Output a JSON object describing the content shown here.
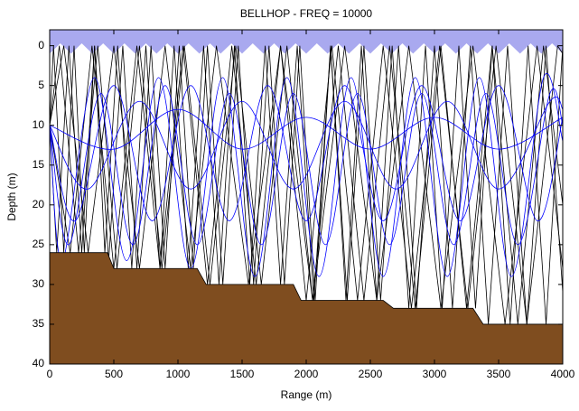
{
  "chart_data": {
    "type": "ray-trace",
    "title": "BELLHOP - FREQ = 10000",
    "xlabel": "Range (m)",
    "ylabel": "Depth (m)",
    "xlim": [
      0,
      4000
    ],
    "ylim": [
      -2,
      40
    ],
    "y_reversed": true,
    "xticks": [
      0,
      500,
      1000,
      1500,
      2000,
      2500,
      3000,
      3500,
      4000
    ],
    "yticks": [
      0,
      5,
      10,
      15,
      20,
      25,
      30,
      35,
      40
    ],
    "surface": {
      "color": "#a9a9ef",
      "x": [
        0,
        83,
        167,
        250,
        333,
        417,
        500,
        583,
        667,
        750,
        833,
        917,
        1000,
        1083,
        1167,
        1250,
        1333,
        1417,
        1500,
        1583,
        1667,
        1750,
        1833,
        1917,
        2000,
        2083,
        2167,
        2250,
        2333,
        2417,
        2500,
        2583,
        2667,
        2750,
        2833,
        2917,
        3000,
        3083,
        3167,
        3250,
        3333,
        3417,
        3500,
        3583,
        3667,
        3750,
        3833,
        3917,
        4000
      ],
      "y": [
        1,
        -0.3,
        1,
        -0.3,
        1,
        -0.3,
        1,
        -0.3,
        1,
        -0.3,
        1,
        -0.3,
        1,
        -0.3,
        1,
        -0.3,
        1,
        -0.3,
        1,
        -0.3,
        1,
        -0.3,
        1,
        -0.3,
        1,
        -0.3,
        1,
        -0.3,
        1,
        -0.3,
        1,
        -0.3,
        1,
        -0.3,
        1,
        -0.3,
        1,
        -0.3,
        1,
        -0.3,
        1,
        -0.3,
        1,
        -0.3,
        1,
        -0.3,
        1,
        -0.3,
        1
      ]
    },
    "bathymetry": {
      "color": "#7f4d1f",
      "x": [
        0,
        450,
        500,
        1150,
        1220,
        1900,
        1960,
        2600,
        2680,
        3300,
        3380,
        4000
      ],
      "y": [
        26,
        26,
        28,
        28,
        30,
        30,
        32,
        32,
        33,
        33,
        35,
        35
      ]
    },
    "rays": [
      {
        "color": "#000000",
        "curved": false,
        "x": [
          0,
          75,
          225,
          375,
          525,
          700,
          875,
          1050,
          1250,
          1450,
          1650,
          1850,
          2050,
          2250,
          2450,
          2650,
          2850,
          3050,
          3250,
          3450,
          3650,
          3850,
          4000
        ],
        "y": [
          10,
          0,
          26,
          0,
          28,
          0,
          28,
          0,
          30,
          0,
          30,
          0,
          32,
          0,
          32,
          0,
          33,
          0,
          33,
          0,
          35,
          0,
          20
        ]
      },
      {
        "color": "#000000",
        "curved": false,
        "x": [
          0,
          30,
          110,
          190,
          270,
          350,
          430,
          530,
          640,
          750,
          860,
          970,
          1080,
          1200,
          1320,
          1440,
          1560,
          1680,
          1800,
          1930,
          2060,
          2190,
          2320,
          2450,
          2580,
          2720,
          2860,
          3000,
          3140,
          3280,
          3420,
          3570,
          3720,
          3870,
          4000
        ],
        "y": [
          10,
          0,
          26,
          0,
          26,
          0,
          26,
          0,
          28,
          0,
          28,
          0,
          28,
          0,
          30,
          0,
          30,
          0,
          30,
          0,
          32,
          0,
          32,
          0,
          32,
          0,
          33,
          0,
          33,
          0,
          35,
          0,
          35,
          0,
          31
        ]
      },
      {
        "color": "#000000",
        "curved": false,
        "x": [
          0,
          110,
          300,
          500,
          700,
          900,
          1100,
          1300,
          1550,
          1800,
          2050,
          2300,
          2550,
          2800,
          3050,
          3300,
          3550,
          3800,
          4000
        ],
        "y": [
          10,
          0,
          26,
          0,
          28,
          0,
          28,
          0,
          30,
          0,
          32,
          0,
          32,
          0,
          33,
          0,
          35,
          0,
          28
        ]
      },
      {
        "color": "#000000",
        "curved": false,
        "x": [
          0,
          160,
          330,
          500,
          680,
          860,
          1040,
          1230,
          1420,
          1610,
          1800,
          2000,
          2200,
          2400,
          2600,
          2820,
          3040,
          3260,
          3480,
          3720,
          3960,
          4000
        ],
        "y": [
          10,
          26,
          0,
          28,
          0,
          28,
          0,
          30,
          0,
          30,
          0,
          32,
          0,
          32,
          0,
          33,
          0,
          33,
          0,
          35,
          0,
          1
        ]
      },
      {
        "color": "#000000",
        "curved": false,
        "x": [
          0,
          55,
          150,
          250,
          350,
          460,
          570,
          680,
          790,
          900,
          1010,
          1120,
          1230,
          1350,
          1470,
          1590,
          1710,
          1830,
          1950,
          2070,
          2190,
          2310,
          2430,
          2550,
          2670,
          2800,
          2930,
          3060,
          3190,
          3320,
          3450,
          3590,
          3730,
          3870,
          4000
        ],
        "y": [
          10,
          26,
          0,
          26,
          0,
          27,
          0,
          28,
          0,
          28,
          0,
          28,
          0,
          30,
          0,
          30,
          0,
          30,
          0,
          32,
          0,
          32,
          0,
          32,
          0,
          33,
          0,
          33,
          0,
          33,
          0,
          35,
          0,
          35,
          0
        ]
      },
      {
        "color": "#0000ff",
        "curved": true,
        "x": [
          0,
          150,
          400,
          650,
          900,
          1150,
          1400,
          1650,
          1900,
          2150,
          2400,
          2650,
          2900,
          3150,
          3400,
          3650,
          3900,
          4000
        ],
        "y": [
          10,
          25,
          6,
          25,
          5,
          25,
          6,
          25,
          6,
          25,
          6,
          25,
          6,
          25,
          6,
          25,
          6,
          10
        ]
      },
      {
        "color": "#0000ff",
        "curved": true,
        "x": [
          0,
          300,
          700,
          1100,
          1500,
          1900,
          2300,
          2700,
          3100,
          3500,
          3900,
          4000
        ],
        "y": [
          10,
          18,
          7,
          18,
          7,
          18,
          7,
          18,
          7,
          18,
          7,
          8
        ]
      },
      {
        "color": "#0000ff",
        "curved": true,
        "x": [
          0,
          100,
          350,
          600,
          850,
          1100,
          1350,
          1600,
          1850,
          2100,
          2350,
          2600,
          2850,
          3100,
          3350,
          3600,
          3850,
          4000
        ],
        "y": [
          10,
          27,
          4,
          27,
          4,
          28,
          4,
          29,
          4,
          29,
          4,
          29,
          4,
          29,
          4,
          29,
          4,
          12
        ]
      },
      {
        "color": "#0000ff",
        "curved": true,
        "x": [
          0,
          500,
          1000,
          1500,
          2000,
          2500,
          3000,
          3500,
          4000
        ],
        "y": [
          10,
          13,
          8,
          13,
          9,
          13,
          9,
          13,
          9
        ]
      },
      {
        "color": "#0000ff",
        "curved": true,
        "x": [
          0,
          200,
          500,
          800,
          1100,
          1400,
          1700,
          2000,
          2300,
          2600,
          2900,
          3200,
          3500,
          3800,
          4000
        ],
        "y": [
          10,
          22,
          5,
          22,
          5,
          22,
          5,
          22,
          5,
          22,
          5,
          22,
          5,
          22,
          9
        ]
      }
    ]
  }
}
